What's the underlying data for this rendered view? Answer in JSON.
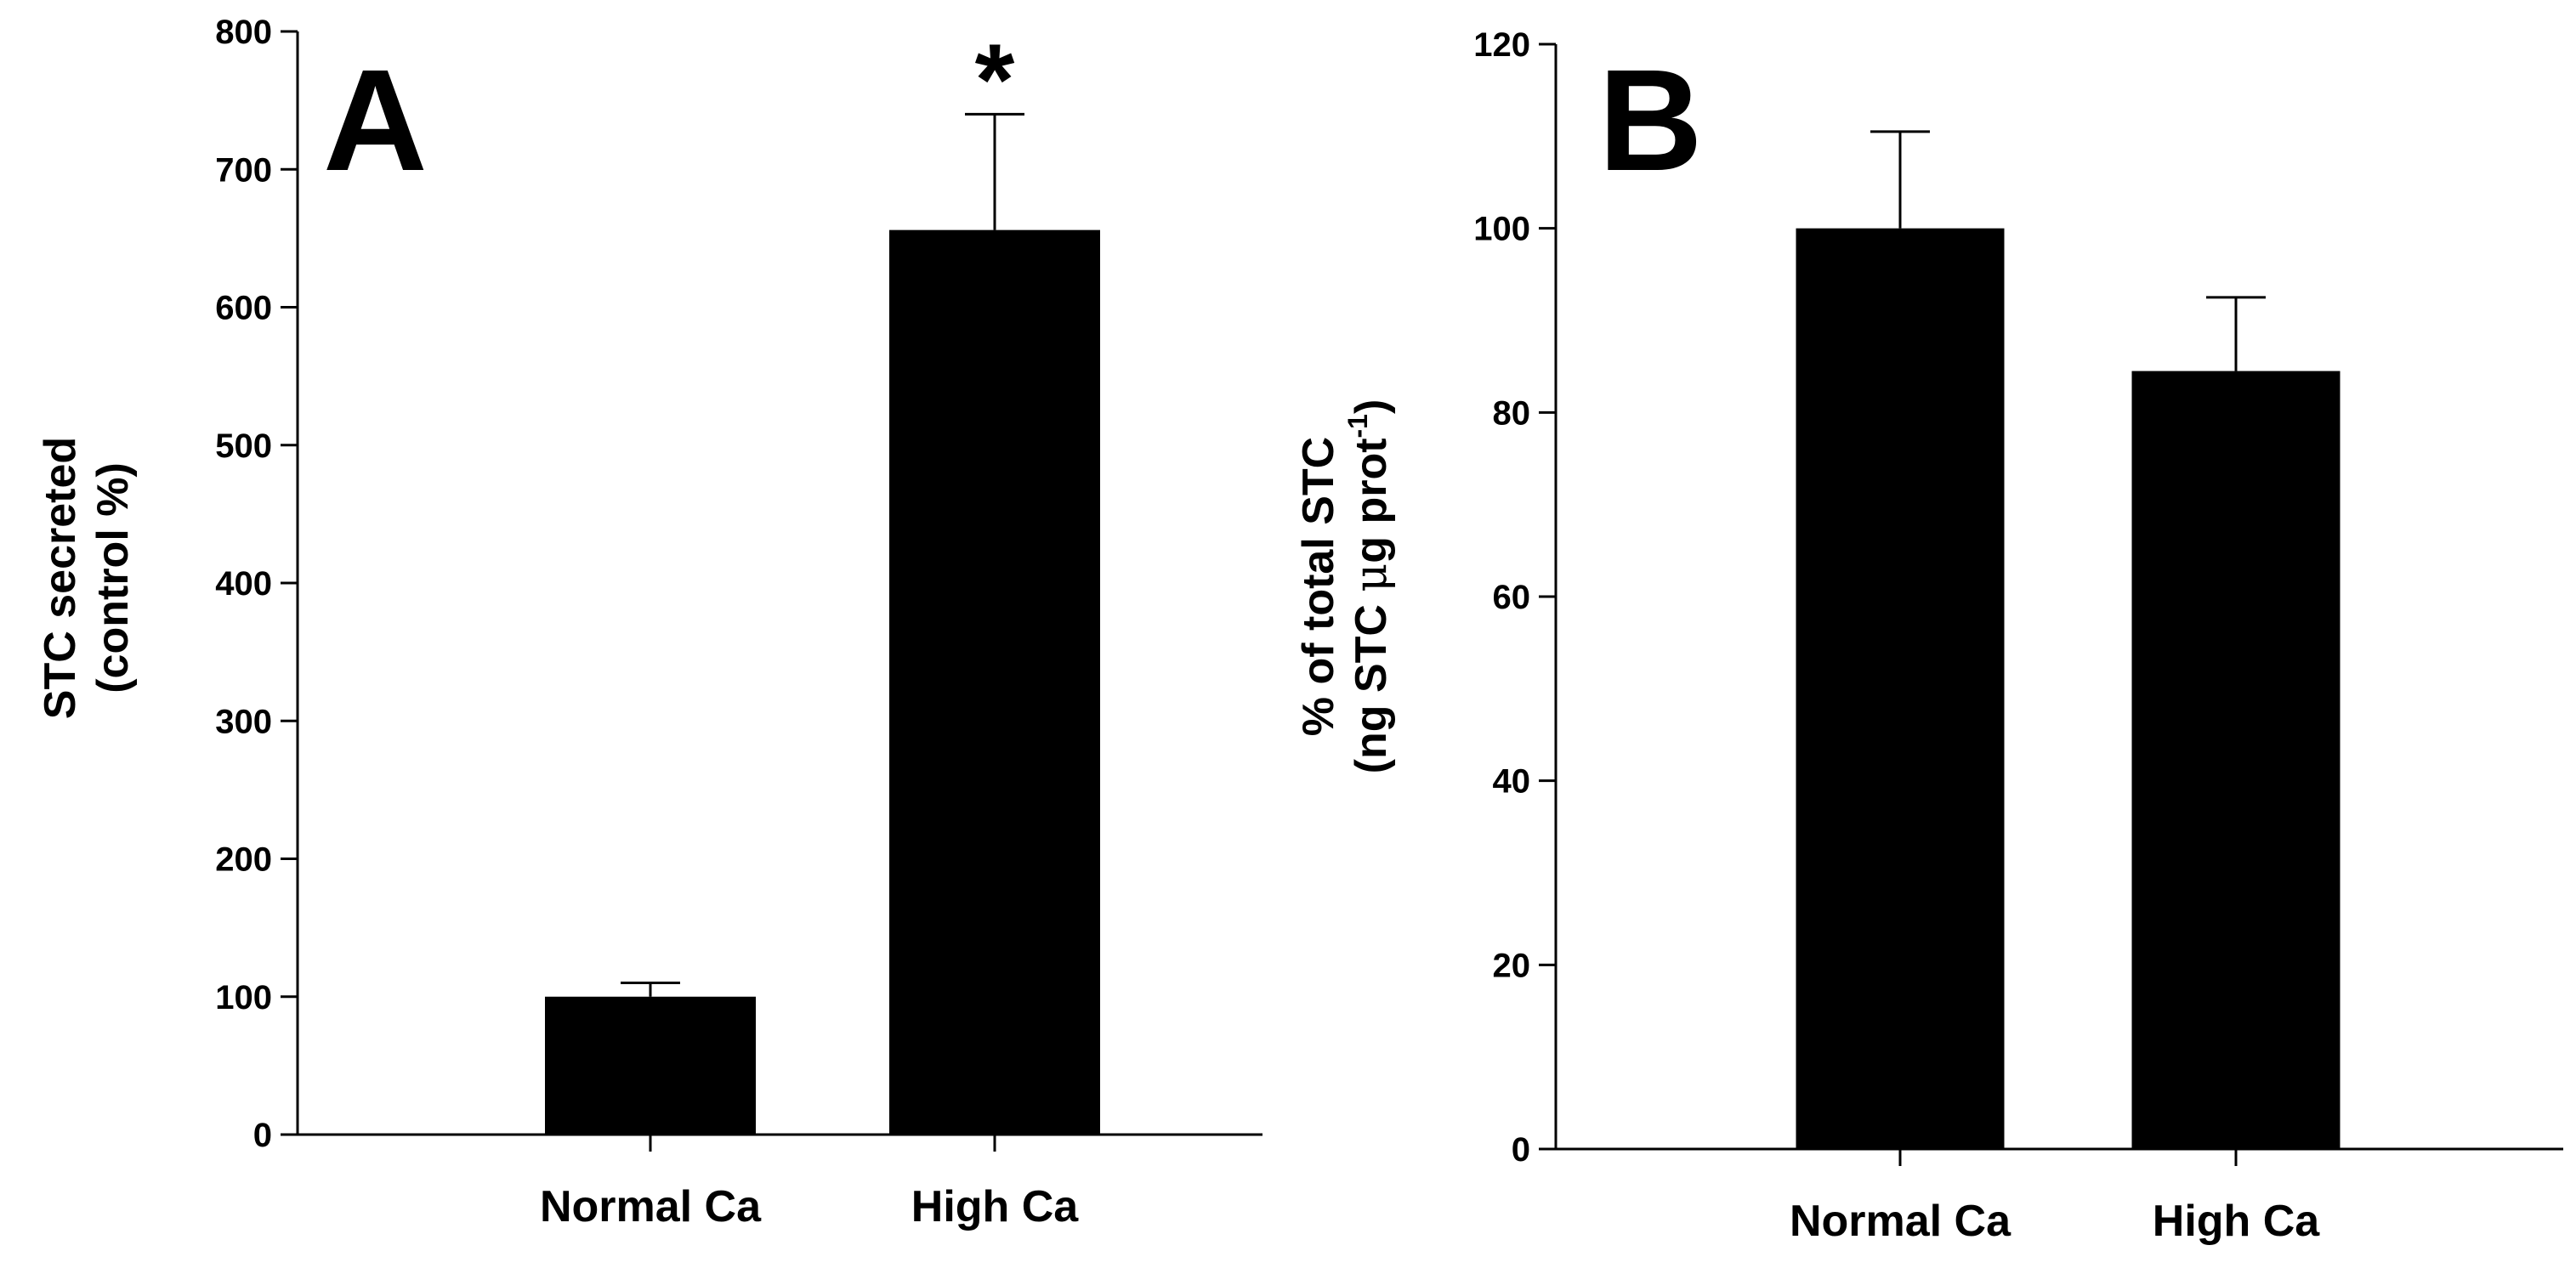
{
  "chart_data": [
    {
      "type": "bar",
      "panel_label": "A",
      "categories": [
        "Normal Ca",
        "High Ca"
      ],
      "values": [
        100,
        656
      ],
      "errors": [
        10,
        84
      ],
      "annotations": [
        "",
        "*"
      ],
      "ylabel_line1": "STC secreted",
      "ylabel_line2": "(control %)",
      "xlabel": "",
      "ylim": [
        0,
        800
      ],
      "yticks": [
        0,
        100,
        200,
        300,
        400,
        500,
        600,
        700,
        800
      ],
      "bar_color": "#000000"
    },
    {
      "type": "bar",
      "panel_label": "B",
      "categories": [
        "Normal Ca",
        "High Ca"
      ],
      "values": [
        100,
        84.5
      ],
      "errors": [
        10.5,
        8
      ],
      "annotations": [
        "",
        ""
      ],
      "ylabel_line1": "% of total STC",
      "ylabel_line2_pre": "(ng STC ",
      "ylabel_line2_mu": "μ",
      "ylabel_line2_mid": "g prot",
      "ylabel_line2_sup": "-1",
      "ylabel_line2_post": ")",
      "xlabel": "",
      "ylim": [
        0,
        120
      ],
      "yticks": [
        0,
        20,
        40,
        60,
        80,
        100,
        120
      ],
      "bar_color": "#000000"
    }
  ]
}
